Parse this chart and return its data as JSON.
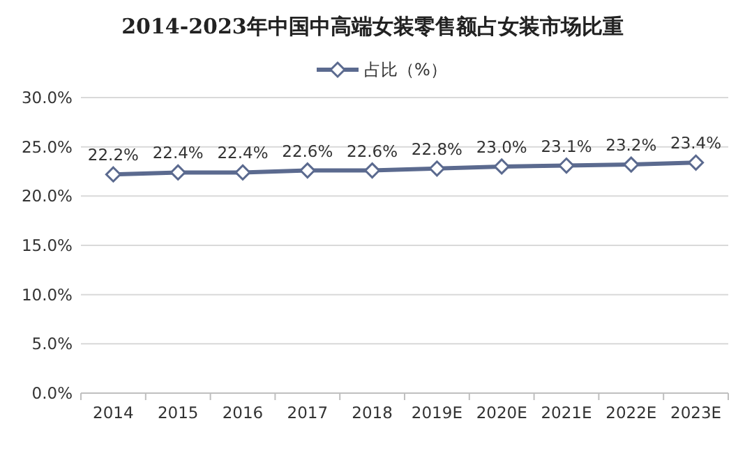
{
  "chart_data": {
    "type": "line",
    "title": "2014-2023年中国中高端女装零售额占女装市场比重",
    "categories": [
      "2014",
      "2015",
      "2016",
      "2017",
      "2018",
      "2019E",
      "2020E",
      "2021E",
      "2022E",
      "2023E"
    ],
    "series": [
      {
        "name": "占比（%）",
        "color": "#5b6a8f",
        "values": [
          22.2,
          22.4,
          22.4,
          22.6,
          22.6,
          22.8,
          23.0,
          23.1,
          23.2,
          23.4
        ],
        "value_labels": [
          "22.2%",
          "22.4%",
          "22.4%",
          "22.6%",
          "22.6%",
          "22.8%",
          "23.0%",
          "23.1%",
          "23.2%",
          "23.4%"
        ]
      }
    ],
    "ylim": [
      0,
      30
    ],
    "yticks": [
      {
        "value": 0,
        "label": "0.0%"
      },
      {
        "value": 5,
        "label": "5.0%"
      },
      {
        "value": 10,
        "label": "10.0%"
      },
      {
        "value": 15,
        "label": "15.0%"
      },
      {
        "value": 20,
        "label": "20.0%"
      },
      {
        "value": 25,
        "label": "25.0%"
      },
      {
        "value": 30,
        "label": "30.0%"
      }
    ],
    "grid": "y",
    "legend": "top",
    "marker": "diamond"
  }
}
